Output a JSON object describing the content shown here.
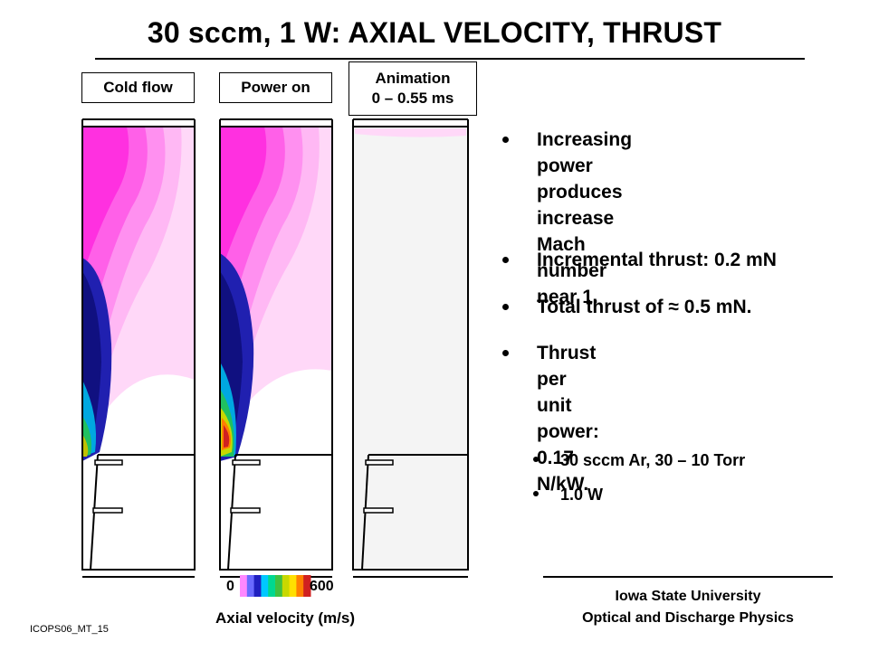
{
  "title": "30 sccm, 1 W: AXIAL VELOCITY, THRUST",
  "panels": {
    "cold_flow": "Cold flow",
    "power_on": "Power on",
    "animation_line1": "Animation",
    "animation_line2": "0 – 0.55 ms"
  },
  "bullets": [
    "Increasing power\nproduces increase Mach\nnumber near 1.",
    "Incremental thrust: 0.2 mN",
    "Total thrust of ≈ 0.5 mN.",
    " Thrust per unit power:\n0.17  N/kW."
  ],
  "conditions": [
    "30 sccm Ar, 30 – 10 Torr",
    "1.0 W"
  ],
  "colorbar": {
    "min": "0",
    "max": "600",
    "title": "Axial velocity (m/s)",
    "colors": [
      "#ff88ff",
      "#6a6aff",
      "#2020c0",
      "#00c8ff",
      "#00d890",
      "#40c040",
      "#c8d800",
      "#ffe000",
      "#ff8000",
      "#d02020"
    ]
  },
  "footer": {
    "line1": "Iowa State University",
    "line2": "Optical and Discharge Physics"
  },
  "slide_id": "ICOPS06_MT_15"
}
